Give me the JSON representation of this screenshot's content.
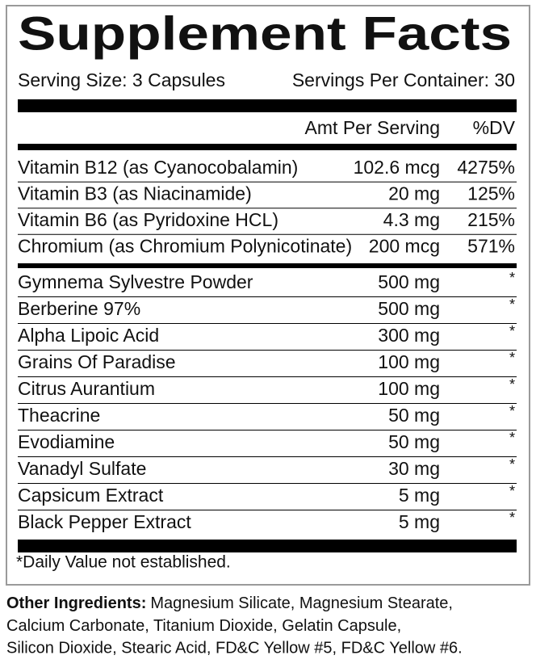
{
  "title": "Supplement Facts",
  "serving_size": "Serving Size: 3 Capsules",
  "servings_per_container": "Servings Per Container: 30",
  "header": {
    "amount": "Amt Per Serving",
    "dv": "%DV"
  },
  "vitamins": [
    {
      "name": "Vitamin B12 (as Cyanocobalamin)",
      "amount": "102.6 mcg",
      "dv": "4275%"
    },
    {
      "name": "Vitamin B3 (as Niacinamide)",
      "amount": "20 mg",
      "dv": "125%"
    },
    {
      "name": "Vitamin B6 (as Pyridoxine HCL)",
      "amount": "4.3 mg",
      "dv": "215%"
    },
    {
      "name": "Chromium (as Chromium Polynicotinate)",
      "amount": "200 mcg",
      "dv": "571%"
    }
  ],
  "ingredients": [
    {
      "name": "Gymnema Sylvestre Powder",
      "amount": "500 mg",
      "dv": "*"
    },
    {
      "name": "Berberine 97%",
      "amount": "500 mg",
      "dv": "*"
    },
    {
      "name": "Alpha Lipoic Acid",
      "amount": "300 mg",
      "dv": "*"
    },
    {
      "name": "Grains Of Paradise",
      "amount": "100 mg",
      "dv": "*"
    },
    {
      "name": "Citrus Aurantium",
      "amount": "100 mg",
      "dv": "*"
    },
    {
      "name": "Theacrine",
      "amount": "50 mg",
      "dv": "*"
    },
    {
      "name": "Evodiamine",
      "amount": "50 mg",
      "dv": "*"
    },
    {
      "name": "Vanadyl Sulfate",
      "amount": "30 mg",
      "dv": "*"
    },
    {
      "name": "Capsicum Extract",
      "amount": "5 mg",
      "dv": "*"
    },
    {
      "name": "Black Pepper Extract",
      "amount": "5 mg",
      "dv": "*"
    }
  ],
  "footnote": "*Daily Value not established.",
  "other_ingredients": {
    "label": "Other Ingredients:",
    "lines": [
      "Magnesium Silicate, Magnesium Stearate,",
      "Calcium Carbonate, Titanium Dioxide, Gelatin Capsule,",
      "Silicon Dioxide, Stearic Acid, FD&C Yellow #5, FD&C Yellow #6."
    ]
  }
}
